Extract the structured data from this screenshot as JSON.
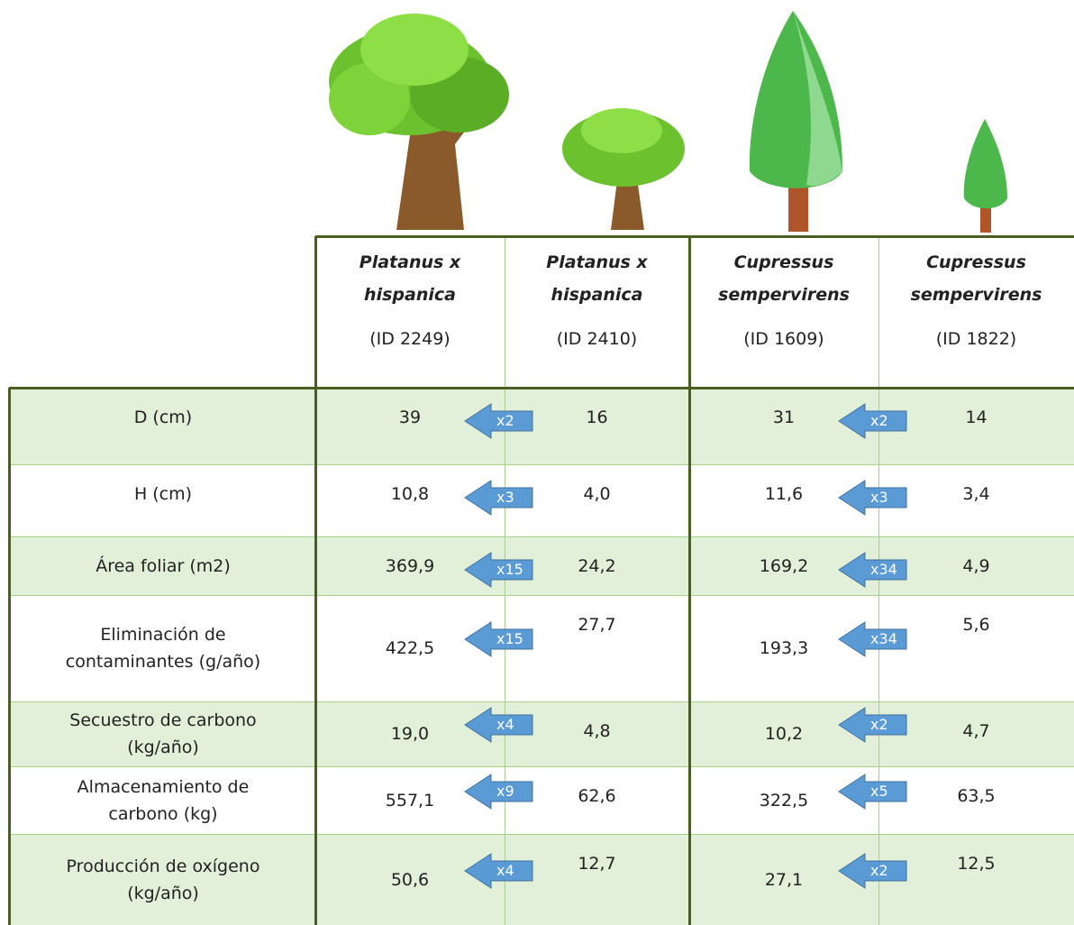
{
  "columns": [
    {
      "species": [
        "Platanus x",
        "hispanica"
      ],
      "id": "(ID 2249)"
    },
    {
      "species": [
        "Platanus x",
        "hispanica"
      ],
      "id": "(ID 2410)"
    },
    {
      "species": [
        "Cupressus",
        "sempervirens"
      ],
      "id": "(ID 1609)"
    },
    {
      "species": [
        "Cupressus",
        "sempervirens"
      ],
      "id": "(ID 1822)"
    }
  ],
  "rows": [
    {
      "label": [
        "D (cm)"
      ],
      "values": [
        "39",
        "16",
        "31",
        "14"
      ],
      "ratios": [
        "x2",
        "x2"
      ]
    },
    {
      "label": [
        "H (cm)"
      ],
      "values": [
        "10,8",
        "4,0",
        "11,6",
        "3,4"
      ],
      "ratios": [
        "x3",
        "x3"
      ]
    },
    {
      "label": [
        "Área foliar (m2)"
      ],
      "values": [
        "369,9",
        "24,2",
        "169,2",
        "4,9"
      ],
      "ratios": [
        "x15",
        "x34"
      ]
    },
    {
      "label": [
        "Eliminación de",
        "contaminantes (g/año)"
      ],
      "values": [
        "422,5",
        "27,7",
        "193,3",
        "5,6"
      ],
      "ratios": [
        "x15",
        "x34"
      ]
    },
    {
      "label": [
        "Secuestro de carbono",
        "(kg/año)"
      ],
      "values": [
        "19,0",
        "4,8",
        "10,2",
        "4,7"
      ],
      "ratios": [
        "x4",
        "x2"
      ]
    },
    {
      "label": [
        "Almacenamiento de",
        "carbono (kg)"
      ],
      "values": [
        "557,1",
        "62,6",
        "322,5",
        "63,5"
      ],
      "ratios": [
        "x9",
        "x5"
      ]
    },
    {
      "label": [
        "Producción de oxígeno",
        "(kg/año)"
      ],
      "values": [
        "50,6",
        "12,7",
        "27,1",
        "12,5"
      ],
      "ratios": [
        "x4",
        "x2"
      ]
    }
  ]
}
